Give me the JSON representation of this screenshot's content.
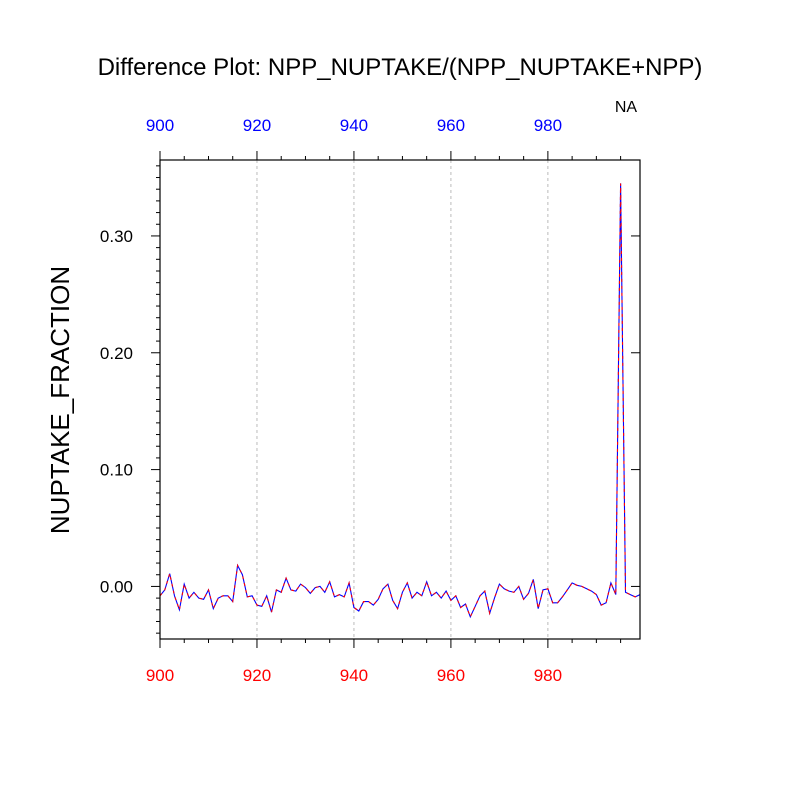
{
  "colors": {
    "top_ticks": "#0000ff",
    "bottom_ticks": "#ff0000",
    "line_primary": "#0000ff",
    "line_secondary": "#ff0000",
    "grid": "#bbbbbb"
  },
  "chart_data": {
    "type": "line",
    "title": "Difference Plot: NPP_NUPTAKE/(NPP_NUPTAKE+NPP)",
    "xlabel": "",
    "ylabel": "NUPTAKE_FRACTION",
    "top_annotation": "NA",
    "xlim": [
      900,
      999
    ],
    "ylim": [
      -0.045,
      0.365
    ],
    "x_ticks": [
      900,
      920,
      940,
      960,
      980
    ],
    "x_tick_labels": [
      "900",
      "920",
      "940",
      "960",
      "980"
    ],
    "y_ticks": [
      0.0,
      0.1,
      0.2,
      0.3
    ],
    "y_tick_labels": [
      "0.00",
      "0.10",
      "0.20",
      "0.30"
    ],
    "grid_x": true,
    "grid_y": false,
    "series": [
      {
        "x": [
          900,
          901,
          902,
          903,
          904,
          905,
          906,
          907,
          908,
          909,
          910,
          911,
          912,
          913,
          914,
          915,
          916,
          917,
          918,
          919,
          920,
          921,
          922,
          923,
          924,
          925,
          926,
          927,
          928,
          929,
          930,
          931,
          932,
          933,
          934,
          935,
          936,
          937,
          938,
          939,
          940,
          941,
          942,
          943,
          944,
          945,
          946,
          947,
          948,
          949,
          950,
          951,
          952,
          953,
          954,
          955,
          956,
          957,
          958,
          959,
          960,
          961,
          962,
          963,
          964,
          965,
          966,
          967,
          968,
          969,
          970,
          971,
          972,
          973,
          974,
          975,
          976,
          977,
          978,
          979,
          980,
          981,
          982,
          983,
          984,
          985,
          986,
          987,
          988,
          989,
          990,
          991,
          992,
          993,
          994,
          995,
          996,
          997,
          998,
          999
        ],
        "values": [
          -0.008,
          -0.003,
          0.011,
          -0.008,
          -0.02,
          0.002,
          -0.01,
          -0.005,
          -0.01,
          -0.011,
          -0.003,
          -0.019,
          -0.01,
          -0.008,
          -0.008,
          -0.013,
          0.018,
          0.01,
          -0.009,
          -0.008,
          -0.016,
          -0.017,
          -0.008,
          -0.022,
          -0.003,
          -0.005,
          0.007,
          -0.003,
          -0.004,
          0.002,
          -0.001,
          -0.006,
          -0.001,
          0.0,
          -0.005,
          0.004,
          -0.009,
          -0.007,
          -0.009,
          0.003,
          -0.018,
          -0.021,
          -0.013,
          -0.013,
          -0.016,
          -0.011,
          -0.002,
          0.002,
          -0.012,
          -0.019,
          -0.005,
          0.003,
          -0.01,
          -0.005,
          -0.008,
          0.004,
          -0.008,
          -0.005,
          -0.01,
          -0.004,
          -0.012,
          -0.008,
          -0.018,
          -0.015,
          -0.026,
          -0.017,
          -0.008,
          -0.004,
          -0.023,
          -0.01,
          0.002,
          -0.002,
          -0.004,
          -0.005,
          0.0,
          -0.011,
          -0.006,
          0.006,
          -0.019,
          -0.003,
          -0.002,
          -0.014,
          -0.014,
          -0.009,
          -0.003,
          0.003,
          0.001,
          0.0,
          -0.002,
          -0.004,
          -0.007,
          -0.016,
          -0.014,
          0.003,
          -0.007,
          0.345,
          -0.005,
          -0.007,
          -0.009,
          -0.007
        ]
      }
    ]
  }
}
